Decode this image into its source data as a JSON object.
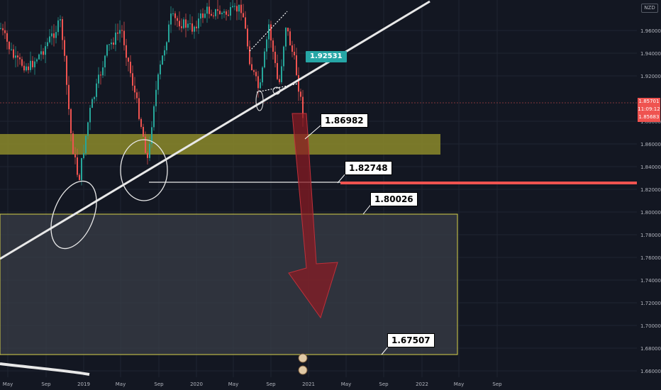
{
  "currency": "NZD",
  "colors": {
    "background": "#131722",
    "up": "#26a69a",
    "down": "#ef5350",
    "trendline": "#e8e8e8",
    "supply_zone": "#8c8a2a",
    "target_zone": "#3a3d47",
    "arrow": "#8a1a22",
    "last_price": "#ef5350",
    "teal_label": "#26a6a6"
  },
  "price_axis": {
    "ticks": [
      "1.96000",
      "1.94000",
      "1.92000",
      "1.88000",
      "1.86000",
      "1.84000",
      "1.82000",
      "1.80000",
      "1.78000",
      "1.76000",
      "1.74000",
      "1.72000",
      "1.70000",
      "1.68000",
      "1.66000"
    ],
    "last_price": "1.85701",
    "countdown": "11:09:12",
    "last_low": "1.85683"
  },
  "time_axis": {
    "ticks": [
      "May",
      "Sep",
      "2019",
      "May",
      "Sep",
      "2020",
      "May",
      "Sep",
      "2021",
      "May",
      "Sep",
      "2022",
      "May",
      "Sep"
    ]
  },
  "annotations": {
    "teal_label": "1.92531",
    "level_1": "1.86982",
    "level_2": "1.82748",
    "level_3": "1.80026",
    "level_4": "1.67507"
  }
}
